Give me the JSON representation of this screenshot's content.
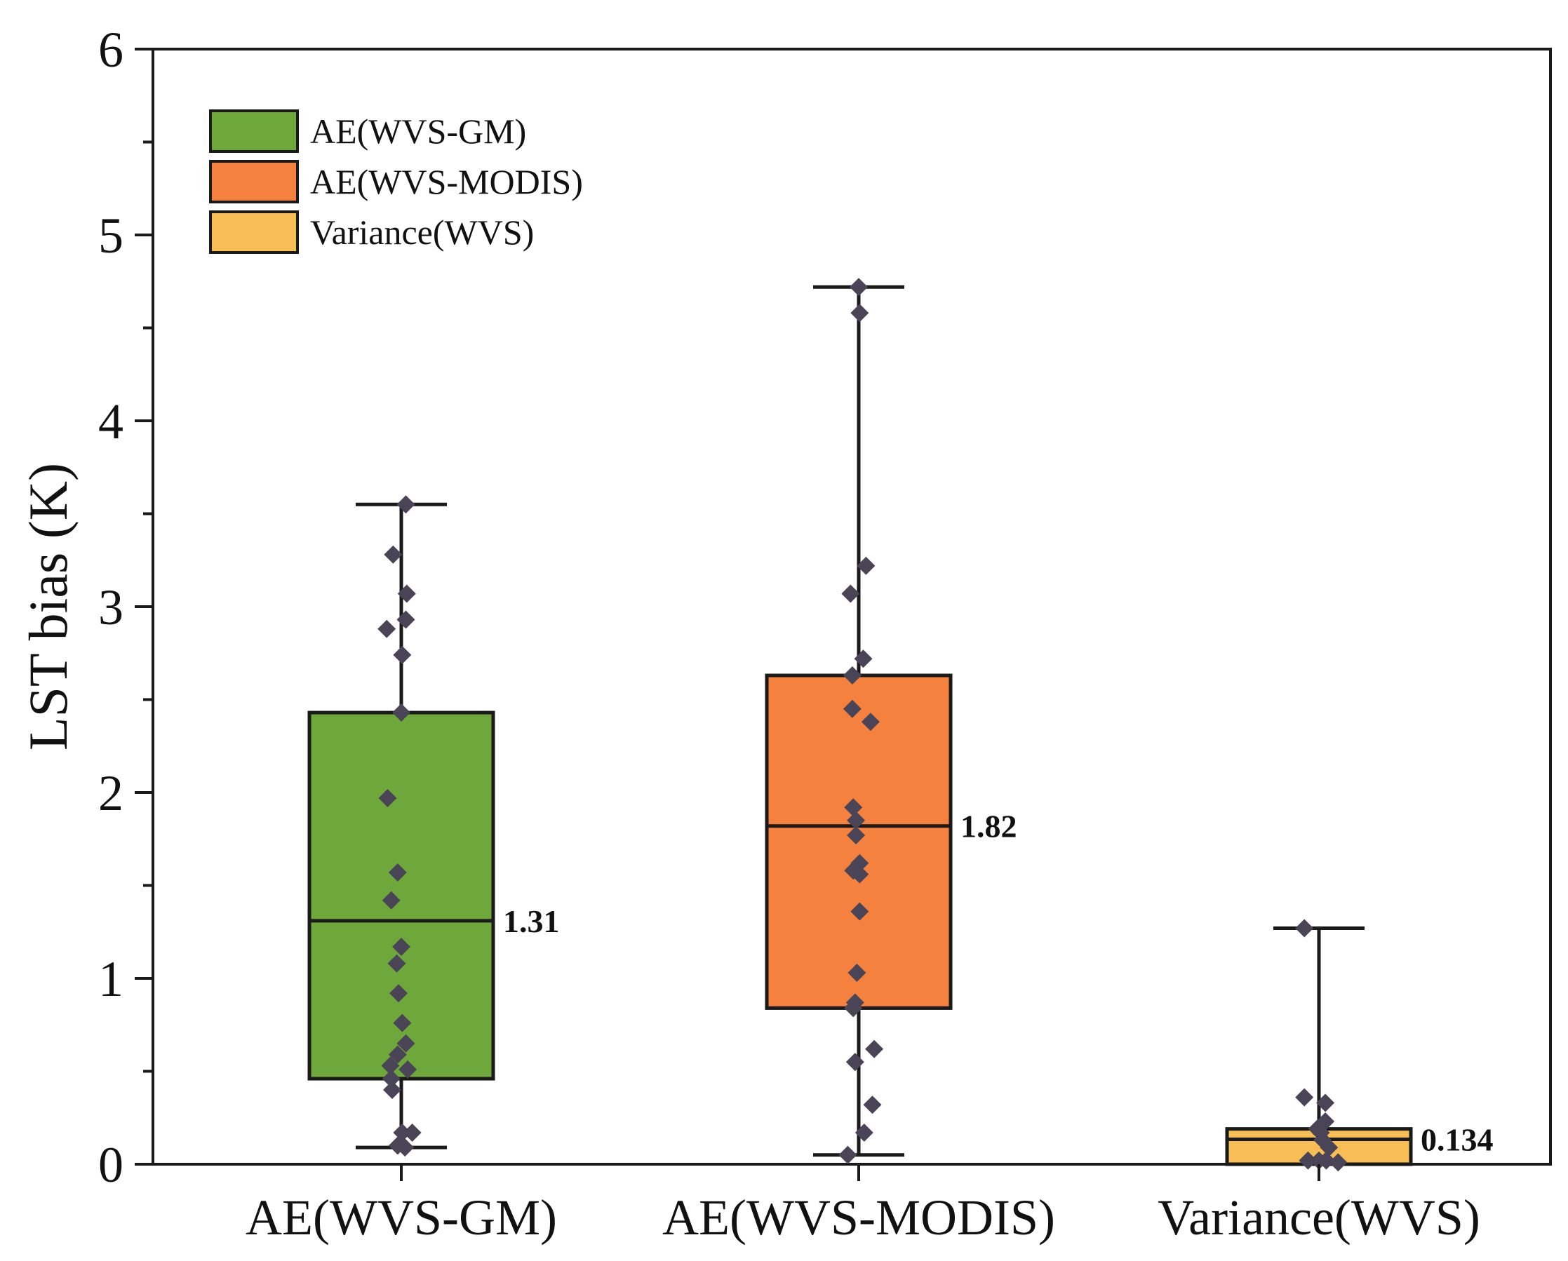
{
  "chart_data": {
    "type": "box",
    "title": "",
    "xlabel": "",
    "ylabel": "LST bias (K)",
    "ylim": [
      0,
      6
    ],
    "yticks": [
      "0",
      "1",
      "2",
      "3",
      "4",
      "5",
      "6"
    ],
    "categories": [
      "AE(WVS-GM)",
      "AE(WVS-MODIS)",
      "Variance(WVS)"
    ],
    "legend_position": "top-left",
    "legend": [
      {
        "label": "AE(WVS-GM)",
        "color": "#6fa83a"
      },
      {
        "label": "AE(WVS-MODIS)",
        "color": "#f5813f"
      },
      {
        "label": "Variance(WVS)",
        "color": "#f8be55"
      }
    ],
    "series": [
      {
        "name": "AE(WVS-GM)",
        "color": "#6fa83a",
        "whisker_low": 0.09,
        "q1": 0.46,
        "median": 1.31,
        "q3": 2.43,
        "whisker_high": 3.55,
        "median_label": "1.31",
        "points": [
          {
            "dx": 0.05,
            "y": 3.55
          },
          {
            "dx": -0.09,
            "y": 3.28
          },
          {
            "dx": 0.06,
            "y": 3.07
          },
          {
            "dx": 0.05,
            "y": 2.93
          },
          {
            "dx": -0.16,
            "y": 2.88
          },
          {
            "dx": 0.01,
            "y": 2.74
          },
          {
            "dx": 0.0,
            "y": 2.43
          },
          {
            "dx": -0.15,
            "y": 1.97
          },
          {
            "dx": -0.04,
            "y": 1.57
          },
          {
            "dx": -0.11,
            "y": 1.42
          },
          {
            "dx": 0.0,
            "y": 1.17
          },
          {
            "dx": -0.05,
            "y": 1.08
          },
          {
            "dx": -0.03,
            "y": 0.92
          },
          {
            "dx": 0.01,
            "y": 0.76
          },
          {
            "dx": 0.05,
            "y": 0.65
          },
          {
            "dx": -0.04,
            "y": 0.59
          },
          {
            "dx": -0.12,
            "y": 0.53
          },
          {
            "dx": 0.07,
            "y": 0.51
          },
          {
            "dx": -0.11,
            "y": 0.46
          },
          {
            "dx": -0.1,
            "y": 0.4
          },
          {
            "dx": 0.01,
            "y": 0.17
          },
          {
            "dx": 0.12,
            "y": 0.17
          },
          {
            "dx": -0.04,
            "y": 0.1
          },
          {
            "dx": 0.04,
            "y": 0.09
          }
        ]
      },
      {
        "name": "AE(WVS-MODIS)",
        "color": "#f5813f",
        "whisker_low": 0.05,
        "q1": 0.84,
        "median": 1.82,
        "q3": 2.63,
        "whisker_high": 4.72,
        "median_label": "1.82",
        "points": [
          {
            "dx": 0.0,
            "y": 4.72
          },
          {
            "dx": 0.01,
            "y": 4.58
          },
          {
            "dx": 0.08,
            "y": 3.22
          },
          {
            "dx": -0.09,
            "y": 3.07
          },
          {
            "dx": 0.05,
            "y": 2.72
          },
          {
            "dx": -0.07,
            "y": 2.63
          },
          {
            "dx": -0.07,
            "y": 2.45
          },
          {
            "dx": 0.13,
            "y": 2.38
          },
          {
            "dx": -0.06,
            "y": 1.92
          },
          {
            "dx": -0.03,
            "y": 1.85
          },
          {
            "dx": -0.03,
            "y": 1.77
          },
          {
            "dx": 0.01,
            "y": 1.62
          },
          {
            "dx": -0.06,
            "y": 1.58
          },
          {
            "dx": 0.01,
            "y": 1.56
          },
          {
            "dx": 0.01,
            "y": 1.36
          },
          {
            "dx": -0.02,
            "y": 1.03
          },
          {
            "dx": -0.04,
            "y": 0.87
          },
          {
            "dx": -0.06,
            "y": 0.84
          },
          {
            "dx": 0.17,
            "y": 0.62
          },
          {
            "dx": -0.04,
            "y": 0.55
          },
          {
            "dx": 0.15,
            "y": 0.32
          },
          {
            "dx": 0.06,
            "y": 0.17
          },
          {
            "dx": -0.12,
            "y": 0.05
          }
        ]
      },
      {
        "name": "Variance(WVS)",
        "color": "#f8be55",
        "whisker_low": 0.0,
        "q1": 0.0,
        "median": 0.134,
        "q3": 0.19,
        "whisker_high": 1.27,
        "median_label": "0.134",
        "points": [
          {
            "dx": -0.16,
            "y": 1.27
          },
          {
            "dx": -0.16,
            "y": 0.36
          },
          {
            "dx": 0.07,
            "y": 0.33
          },
          {
            "dx": 0.07,
            "y": 0.23
          },
          {
            "dx": -0.02,
            "y": 0.19
          },
          {
            "dx": 0.02,
            "y": 0.17
          },
          {
            "dx": 0.04,
            "y": 0.13
          },
          {
            "dx": 0.11,
            "y": 0.09
          },
          {
            "dx": -0.12,
            "y": 0.02
          },
          {
            "dx": 0.0,
            "y": 0.02
          },
          {
            "dx": 0.08,
            "y": 0.02
          },
          {
            "dx": 0.21,
            "y": 0.01
          }
        ]
      }
    ]
  }
}
